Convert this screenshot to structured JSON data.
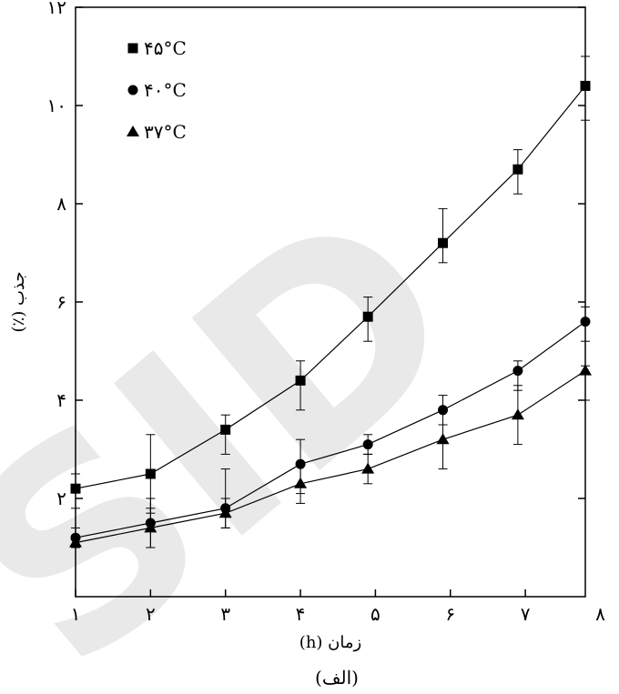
{
  "watermark": "SID",
  "caption": "(الف)",
  "chart_data": {
    "type": "line",
    "xlabel": "زمان (h)",
    "ylabel": "جذب (٪)",
    "xlim": [
      1,
      7.8
    ],
    "ylim": [
      0,
      12
    ],
    "x_ticks": [
      1,
      2,
      3,
      4,
      5,
      6,
      7,
      8
    ],
    "x_tick_labels": [
      "۱",
      "۲",
      "۳",
      "۴",
      "۵",
      "۶",
      "۷",
      "۸"
    ],
    "y_ticks": [
      2,
      4,
      6,
      8,
      10,
      12
    ],
    "y_tick_labels": [
      "۲",
      "۴",
      "۶",
      "۸",
      "۱۰",
      "۱۲"
    ],
    "grid": false,
    "legend_position": "top-left",
    "series": [
      {
        "name": "۴۵°C",
        "marker": "square",
        "x": [
          1,
          2,
          3,
          4,
          4.9,
          5.9,
          6.9,
          7.8
        ],
        "y": [
          2.2,
          2.5,
          3.4,
          4.4,
          5.7,
          7.2,
          8.7,
          10.4
        ],
        "err_low": [
          0.4,
          0.8,
          0.5,
          0.6,
          0.5,
          0.4,
          0.5,
          0.7
        ],
        "err_high": [
          0.3,
          0.8,
          0.3,
          0.4,
          0.4,
          0.7,
          0.4,
          0.6
        ]
      },
      {
        "name": "۴۰°C",
        "marker": "circle",
        "x": [
          1,
          2,
          3,
          4,
          4.9,
          5.9,
          6.9,
          7.8
        ],
        "y": [
          1.2,
          1.5,
          1.8,
          2.7,
          3.1,
          3.8,
          4.6,
          5.6
        ],
        "err_low": [
          0.2,
          0.5,
          0.4,
          0.6,
          0.2,
          0.3,
          0.4,
          0.4
        ],
        "err_high": [
          0.2,
          0.5,
          0.8,
          0.5,
          0.2,
          0.3,
          0.2,
          0.3
        ]
      },
      {
        "name": "۳۷°C",
        "marker": "triangle",
        "x": [
          1,
          2,
          3,
          4,
          4.9,
          5.9,
          6.9,
          7.8
        ],
        "y": [
          1.1,
          1.4,
          1.7,
          2.3,
          2.6,
          3.2,
          3.7,
          4.6
        ],
        "err_low": [
          0.1,
          0.4,
          0.3,
          0.4,
          0.3,
          0.6,
          0.6,
          0.6
        ],
        "err_high": [
          0.1,
          0.4,
          0.3,
          0.4,
          0.3,
          0.3,
          0.6,
          0.1
        ]
      }
    ]
  }
}
